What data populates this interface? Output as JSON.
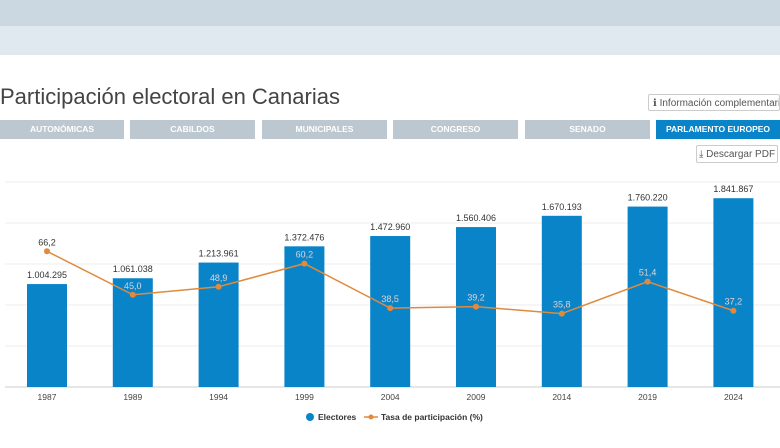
{
  "header": {
    "title": "Participación electoral en Canarias",
    "info_button": "Información complementaria",
    "pdf_button": "Descargar PDF"
  },
  "tabs": [
    {
      "label": "AUTONÓMICAS"
    },
    {
      "label": "CABILDOS"
    },
    {
      "label": "MUNICIPALES"
    },
    {
      "label": "CONGRESO"
    },
    {
      "label": "SENADO"
    },
    {
      "label": "PARLAMENTO EUROPEO",
      "active": true
    }
  ],
  "colors": {
    "bar": "#0a84c8",
    "line": "#e08a3c",
    "active_tab": "#0a84c8"
  },
  "chart_data": {
    "type": "bar+line",
    "categories": [
      "1987",
      "1989",
      "1994",
      "1999",
      "2004",
      "2009",
      "2014",
      "2019",
      "2024"
    ],
    "series": [
      {
        "name": "Electores",
        "type": "bar",
        "values": [
          1004295,
          1061038,
          1213961,
          1372476,
          1472960,
          1560406,
          1670193,
          1760220,
          1841867
        ],
        "labels": [
          "1.004.295",
          "1.061.038",
          "1.213.961",
          "1.372.476",
          "1.472.960",
          "1.560.406",
          "1.670.193",
          "1.760.220",
          "1.841.867"
        ],
        "ylim": [
          0,
          2000000
        ]
      },
      {
        "name": "Tasa de participación (%)",
        "type": "line",
        "values": [
          66.2,
          45.0,
          48.9,
          60.2,
          38.5,
          39.2,
          35.8,
          51.4,
          37.2
        ],
        "labels": [
          "66,2",
          "45,0",
          "48,9",
          "60,2",
          "38,5",
          "39,2",
          "35,8",
          "51,4",
          "37,2"
        ],
        "ylim": [
          0,
          100
        ]
      }
    ],
    "grid": true,
    "legend": "bottom-center"
  }
}
